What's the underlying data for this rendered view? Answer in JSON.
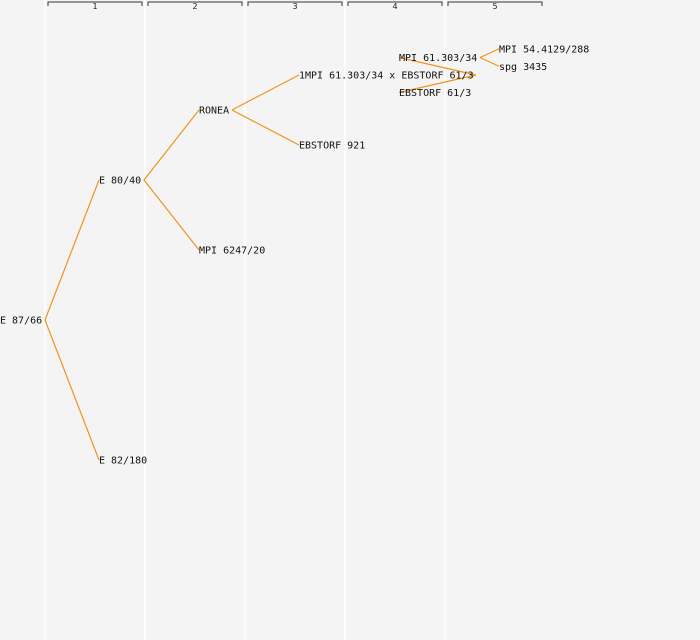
{
  "colors": {
    "background": "#f4f4f4",
    "edge": "#f0941e",
    "column_line": "#ffffff",
    "text": "#111111"
  },
  "generations": [
    "1",
    "2",
    "3",
    "4",
    "5"
  ],
  "nodes": [
    {
      "id": "n0",
      "label": "E 87/66",
      "generation": 0,
      "parent": null
    },
    {
      "id": "n1",
      "label": "E 80/40",
      "generation": 1,
      "parent": "n0"
    },
    {
      "id": "n2",
      "label": "E 82/180",
      "generation": 1,
      "parent": "n0"
    },
    {
      "id": "n3",
      "label": "RONEA",
      "generation": 2,
      "parent": "n1"
    },
    {
      "id": "n4",
      "label": "MPI 6247/20",
      "generation": 2,
      "parent": "n1"
    },
    {
      "id": "n5",
      "label": "1MPI 61.303/34 x EBSTORF 61/3",
      "generation": 3,
      "parent": "n3"
    },
    {
      "id": "n6",
      "label": "EBSTORF 921",
      "generation": 3,
      "parent": "n3"
    },
    {
      "id": "n7",
      "label": "MPI 61.303/34",
      "generation": 4,
      "parent": "n5"
    },
    {
      "id": "n8",
      "label": "EBSTORF 61/3",
      "generation": 4,
      "parent": "n5"
    },
    {
      "id": "n9",
      "label": "MPI 54.4129/288",
      "generation": 5,
      "parent": "n7"
    },
    {
      "id": "n10",
      "label": "spg 3435",
      "generation": 5,
      "parent": "n7"
    }
  ]
}
